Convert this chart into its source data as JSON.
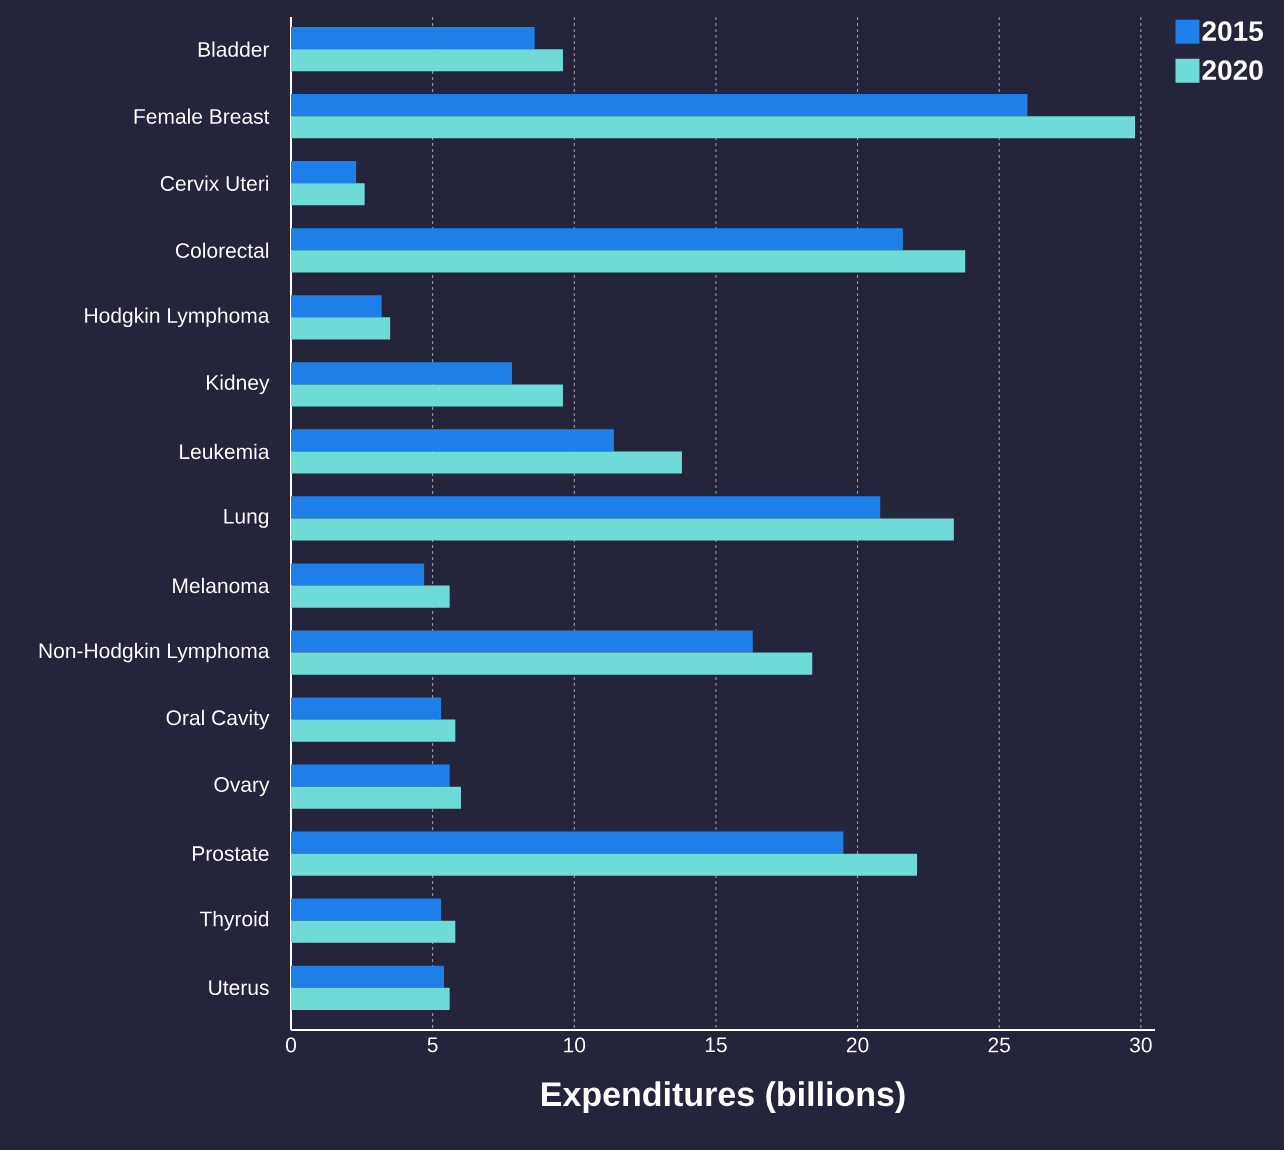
{
  "chart_data": {
    "type": "bar",
    "orientation": "horizontal",
    "xlabel": "Expenditures (billions)",
    "categories": [
      "Bladder",
      "Female Breast",
      "Cervix Uteri",
      "Colorectal",
      "Hodgkin Lymphoma",
      "Kidney",
      "Leukemia",
      "Lung",
      "Melanoma",
      "Non-Hodgkin Lymphoma",
      "Oral Cavity",
      "Ovary",
      "Prostate",
      "Thyroid",
      "Uterus"
    ],
    "series": [
      {
        "name": "2015",
        "color": "#1f7fe8",
        "values": [
          8.6,
          26.0,
          2.3,
          21.6,
          3.2,
          7.8,
          11.4,
          20.8,
          4.7,
          16.3,
          5.3,
          5.6,
          19.5,
          5.3,
          5.4
        ]
      },
      {
        "name": "2020",
        "color": "#6edbd6",
        "values": [
          9.6,
          29.8,
          2.6,
          23.8,
          3.5,
          9.6,
          13.8,
          23.4,
          5.6,
          18.4,
          5.8,
          6.0,
          22.1,
          5.8,
          5.6
        ]
      }
    ],
    "xlim": [
      0,
      30.5
    ],
    "xticks": [
      0,
      5,
      10,
      15,
      20,
      25,
      30
    ],
    "grid": "x",
    "legend": "top right"
  }
}
